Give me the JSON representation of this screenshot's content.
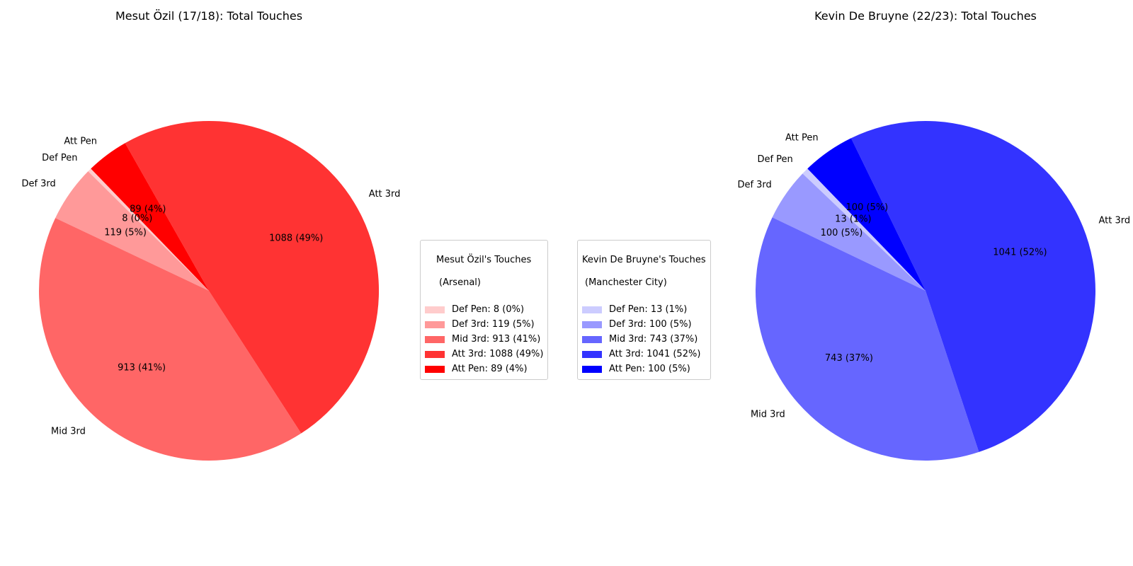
{
  "chart_data": [
    {
      "type": "pie",
      "title": "Mesut Özil (17/18): Total Touches",
      "categories": [
        "Def Pen",
        "Def 3rd",
        "Mid 3rd",
        "Att 3rd",
        "Att Pen"
      ],
      "values": [
        8,
        119,
        913,
        1088,
        89
      ],
      "autopct_labels": [
        "8 (0%)",
        "119 (5%)",
        "913 (41%)",
        "1088 (49%)",
        "89 (4%)"
      ],
      "colors": [
        "#ffcccc",
        "#ff9999",
        "#ff6666",
        "#ff3333",
        "#ff0000"
      ],
      "legend": {
        "title_line1": "Mesut Özil's Touches",
        "title_line2": "(Arsenal)",
        "entries": [
          "Def Pen: 8 (0%)",
          "Def 3rd: 119 (5%)",
          "Mid 3rd: 913 (41%)",
          "Att 3rd: 1088 (49%)",
          "Att Pen: 89 (4%)"
        ],
        "placement": "right of chart, centered"
      }
    },
    {
      "type": "pie",
      "title": "Kevin De Bruyne (22/23): Total Touches",
      "categories": [
        "Def Pen",
        "Def 3rd",
        "Mid 3rd",
        "Att 3rd",
        "Att Pen"
      ],
      "values": [
        13,
        100,
        743,
        1041,
        100
      ],
      "autopct_labels": [
        "13 (1%)",
        "100 (5%)",
        "743 (37%)",
        "1041 (52%)",
        "100 (5%)"
      ],
      "colors": [
        "#ccccff",
        "#9999ff",
        "#6666ff",
        "#3333ff",
        "#0000ff"
      ],
      "legend": {
        "title_line1": "Kevin De Bruyne's Touches",
        "title_line2": "(Manchester City)",
        "entries": [
          "Def Pen: 13 (1%)",
          "Def 3rd: 100 (5%)",
          "Mid 3rd: 743 (37%)",
          "Att 3rd: 1041 (52%)",
          "Att Pen: 100 (5%)"
        ],
        "placement": "left of chart, centered"
      }
    }
  ]
}
